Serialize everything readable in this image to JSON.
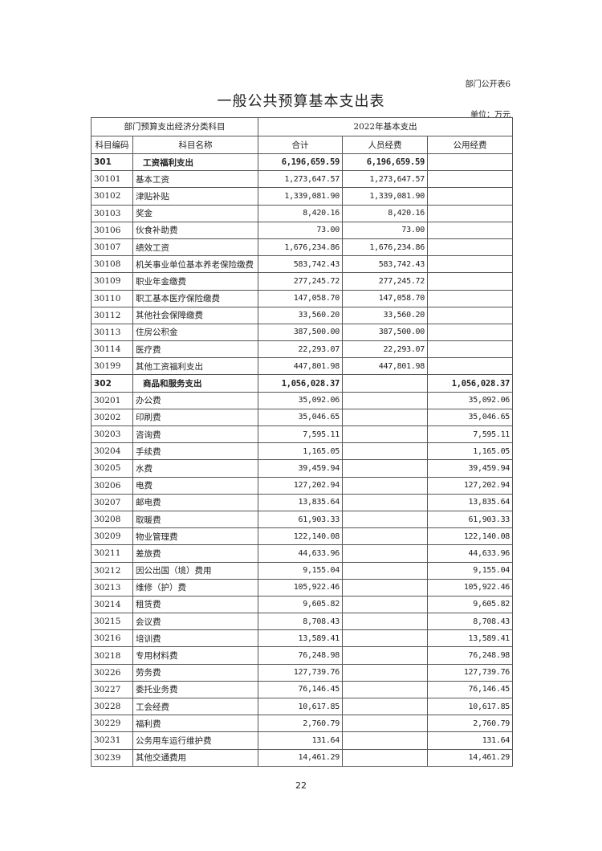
{
  "form_number": "部门公开表6",
  "title": "一般公共预算基本支出表",
  "unit": "单位：万元",
  "header": {
    "group_left": "部门预算支出经济分类科目",
    "group_right": "2022年基本支出",
    "code": "科目编码",
    "name": "科目名称",
    "total": "合计",
    "personnel": "人员经费",
    "public": "公用经费"
  },
  "rows": [
    {
      "code": "301",
      "name": "工资福利支出",
      "total": "6,196,659.59",
      "personnel": "6,196,659.59",
      "public": "",
      "group": true
    },
    {
      "code": "30101",
      "name": "基本工资",
      "total": "1,273,647.57",
      "personnel": "1,273,647.57",
      "public": ""
    },
    {
      "code": "30102",
      "name": "津贴补贴",
      "total": "1,339,081.90",
      "personnel": "1,339,081.90",
      "public": ""
    },
    {
      "code": "30103",
      "name": "奖金",
      "total": "8,420.16",
      "personnel": "8,420.16",
      "public": ""
    },
    {
      "code": "30106",
      "name": "伙食补助费",
      "total": "73.00",
      "personnel": "73.00",
      "public": ""
    },
    {
      "code": "30107",
      "name": "绩效工资",
      "total": "1,676,234.86",
      "personnel": "1,676,234.86",
      "public": ""
    },
    {
      "code": "30108",
      "name": "机关事业单位基本养老保险缴费",
      "total": "583,742.43",
      "personnel": "583,742.43",
      "public": ""
    },
    {
      "code": "30109",
      "name": "职业年金缴费",
      "total": "277,245.72",
      "personnel": "277,245.72",
      "public": ""
    },
    {
      "code": "30110",
      "name": "职工基本医疗保险缴费",
      "total": "147,058.70",
      "personnel": "147,058.70",
      "public": ""
    },
    {
      "code": "30112",
      "name": "其他社会保障缴费",
      "total": "33,560.20",
      "personnel": "33,560.20",
      "public": ""
    },
    {
      "code": "30113",
      "name": "住房公积金",
      "total": "387,500.00",
      "personnel": "387,500.00",
      "public": ""
    },
    {
      "code": "30114",
      "name": "医疗费",
      "total": "22,293.07",
      "personnel": "22,293.07",
      "public": ""
    },
    {
      "code": "30199",
      "name": "其他工资福利支出",
      "total": "447,801.98",
      "personnel": "447,801.98",
      "public": ""
    },
    {
      "code": "302",
      "name": "商品和服务支出",
      "total": "1,056,028.37",
      "personnel": "",
      "public": "1,056,028.37",
      "group": true
    },
    {
      "code": "30201",
      "name": "办公费",
      "total": "35,092.06",
      "personnel": "",
      "public": "35,092.06"
    },
    {
      "code": "30202",
      "name": "印刷费",
      "total": "35,046.65",
      "personnel": "",
      "public": "35,046.65"
    },
    {
      "code": "30203",
      "name": "咨询费",
      "total": "7,595.11",
      "personnel": "",
      "public": "7,595.11"
    },
    {
      "code": "30204",
      "name": "手续费",
      "total": "1,165.05",
      "personnel": "",
      "public": "1,165.05"
    },
    {
      "code": "30205",
      "name": "水费",
      "total": "39,459.94",
      "personnel": "",
      "public": "39,459.94"
    },
    {
      "code": "30206",
      "name": "电费",
      "total": "127,202.94",
      "personnel": "",
      "public": "127,202.94"
    },
    {
      "code": "30207",
      "name": "邮电费",
      "total": "13,835.64",
      "personnel": "",
      "public": "13,835.64"
    },
    {
      "code": "30208",
      "name": "取暖费",
      "total": "61,903.33",
      "personnel": "",
      "public": "61,903.33"
    },
    {
      "code": "30209",
      "name": "物业管理费",
      "total": "122,140.08",
      "personnel": "",
      "public": "122,140.08"
    },
    {
      "code": "30211",
      "name": "差旅费",
      "total": "44,633.96",
      "personnel": "",
      "public": "44,633.96"
    },
    {
      "code": "30212",
      "name": "因公出国（境）费用",
      "total": "9,155.04",
      "personnel": "",
      "public": "9,155.04"
    },
    {
      "code": "30213",
      "name": "维修（护）费",
      "total": "105,922.46",
      "personnel": "",
      "public": "105,922.46"
    },
    {
      "code": "30214",
      "name": "租赁费",
      "total": "9,605.82",
      "personnel": "",
      "public": "9,605.82"
    },
    {
      "code": "30215",
      "name": "会议费",
      "total": "8,708.43",
      "personnel": "",
      "public": "8,708.43"
    },
    {
      "code": "30216",
      "name": "培训费",
      "total": "13,589.41",
      "personnel": "",
      "public": "13,589.41"
    },
    {
      "code": "30218",
      "name": "专用材料费",
      "total": "76,248.98",
      "personnel": "",
      "public": "76,248.98"
    },
    {
      "code": "30226",
      "name": "劳务费",
      "total": "127,739.76",
      "personnel": "",
      "public": "127,739.76"
    },
    {
      "code": "30227",
      "name": "委托业务费",
      "total": "76,146.45",
      "personnel": "",
      "public": "76,146.45"
    },
    {
      "code": "30228",
      "name": "工会经费",
      "total": "10,617.85",
      "personnel": "",
      "public": "10,617.85"
    },
    {
      "code": "30229",
      "name": "福利费",
      "total": "2,760.79",
      "personnel": "",
      "public": "2,760.79"
    },
    {
      "code": "30231",
      "name": "公务用车运行维护费",
      "total": "131.64",
      "personnel": "",
      "public": "131.64"
    },
    {
      "code": "30239",
      "name": "其他交通费用",
      "total": "14,461.29",
      "personnel": "",
      "public": "14,461.29"
    }
  ],
  "page_number": "22"
}
